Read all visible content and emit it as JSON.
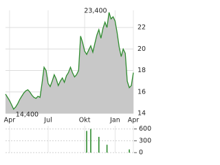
{
  "chart_data": [
    {
      "type": "area-line",
      "color": "#2e8b2e",
      "fill": "#c8c8c8",
      "grid": true,
      "categories": [
        null,
        null,
        "Apr",
        null,
        null,
        null,
        null,
        null,
        null,
        null,
        null,
        null,
        null,
        null,
        null,
        null,
        null,
        null,
        null,
        null,
        null,
        "Jul",
        null,
        null,
        null,
        null,
        null,
        null,
        null,
        null,
        null,
        null,
        null,
        null,
        null,
        null,
        null,
        null,
        null,
        "Okt",
        null,
        null,
        null,
        null,
        null,
        null,
        null,
        null,
        null,
        null,
        null,
        null,
        null,
        null,
        "Jan",
        null,
        null,
        null,
        null,
        null,
        null,
        null,
        null,
        "Apr"
      ],
      "values": [
        15.8,
        15.5,
        15.2,
        14.8,
        14.4,
        14.6,
        14.9,
        15.3,
        15.6,
        15.9,
        16.1,
        16.2,
        16.0,
        15.7,
        15.5,
        15.4,
        15.6,
        15.5,
        16.8,
        18.3,
        18.0,
        16.8,
        16.5,
        17.0,
        17.6,
        17.2,
        16.6,
        17.0,
        17.3,
        16.9,
        17.5,
        17.8,
        18.3,
        17.8,
        17.4,
        17.6,
        18.0,
        21.2,
        20.6,
        19.8,
        19.5,
        19.9,
        20.3,
        19.7,
        20.5,
        21.3,
        21.8,
        21.0,
        21.9,
        22.5,
        22.0,
        23.4,
        22.8,
        23.0,
        22.6,
        21.5,
        20.2,
        19.3,
        20.0,
        19.6,
        17.0,
        16.4,
        16.6,
        17.8
      ],
      "value_labels": [
        null,
        null,
        null,
        null,
        "14,400",
        null,
        null,
        null,
        null,
        null,
        null,
        null,
        null,
        null,
        null,
        null,
        null,
        null,
        null,
        null,
        null,
        null,
        null,
        null,
        null,
        null,
        null,
        null,
        null,
        null,
        null,
        null,
        null,
        null,
        null,
        null,
        null,
        null,
        null,
        null,
        null,
        null,
        null,
        null,
        null,
        null,
        null,
        null,
        null,
        null,
        null,
        "23,400",
        null,
        null,
        null,
        null,
        null,
        null,
        null,
        null,
        null,
        null,
        null,
        null
      ],
      "ylim": [
        14,
        23.6
      ],
      "yticks": [
        14,
        16,
        18,
        20,
        22
      ]
    },
    {
      "type": "bar",
      "color": "#2e8b2e",
      "grid": true,
      "values": [
        0,
        0,
        0,
        0,
        0,
        0,
        0,
        0,
        0,
        0,
        0,
        0,
        0,
        0,
        0,
        0,
        0,
        0,
        0,
        0,
        0,
        0,
        0,
        0,
        0,
        0,
        0,
        0,
        0,
        0,
        0,
        0,
        0,
        0,
        0,
        0,
        0,
        0,
        0,
        0,
        550,
        0,
        600,
        0,
        0,
        0,
        400,
        0,
        0,
        0,
        200,
        0,
        0,
        0,
        0,
        0,
        0,
        0,
        0,
        0,
        0,
        80,
        0,
        0
      ],
      "ylim": [
        0,
        680
      ],
      "yticks": [
        0,
        300,
        600
      ]
    }
  ]
}
